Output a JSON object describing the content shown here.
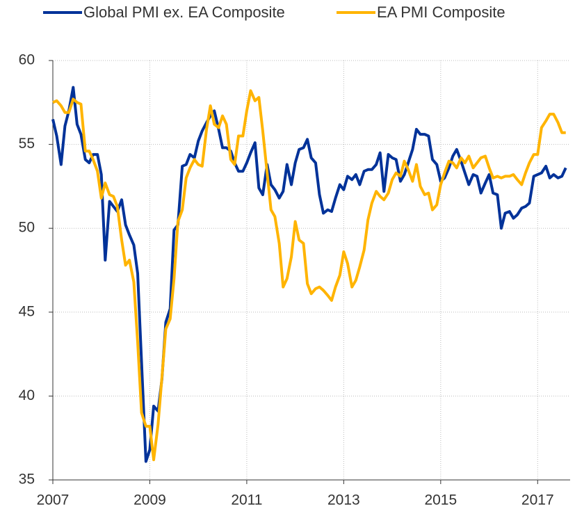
{
  "chart_data": {
    "type": "line",
    "x": [
      2007,
      2007.08,
      2007.17,
      2007.25,
      2007.33,
      2007.42,
      2007.5,
      2007.58,
      2007.67,
      2007.75,
      2007.83,
      2007.92,
      2008,
      2008.08,
      2008.17,
      2008.25,
      2008.33,
      2008.42,
      2008.5,
      2008.58,
      2008.67,
      2008.75,
      2008.83,
      2008.92,
      2009,
      2009.08,
      2009.17,
      2009.25,
      2009.33,
      2009.42,
      2009.5,
      2009.58,
      2009.67,
      2009.75,
      2009.83,
      2009.92,
      2010,
      2010.08,
      2010.17,
      2010.25,
      2010.33,
      2010.42,
      2010.5,
      2010.58,
      2010.67,
      2010.75,
      2010.83,
      2010.92,
      2011,
      2011.08,
      2011.17,
      2011.25,
      2011.33,
      2011.42,
      2011.5,
      2011.58,
      2011.67,
      2011.75,
      2011.83,
      2011.92,
      2012,
      2012.08,
      2012.17,
      2012.25,
      2012.33,
      2012.42,
      2012.5,
      2012.58,
      2012.67,
      2012.75,
      2012.83,
      2012.92,
      2013,
      2013.08,
      2013.17,
      2013.25,
      2013.33,
      2013.42,
      2013.5,
      2013.58,
      2013.67,
      2013.75,
      2013.83,
      2013.92,
      2014,
      2014.08,
      2014.17,
      2014.25,
      2014.33,
      2014.42,
      2014.5,
      2014.58,
      2014.67,
      2014.75,
      2014.83,
      2014.92,
      2015,
      2015.08,
      2015.17,
      2015.25,
      2015.33,
      2015.42,
      2015.5,
      2015.58,
      2015.67,
      2015.75,
      2015.83,
      2015.92,
      2016,
      2016.08,
      2016.17,
      2016.25,
      2016.33,
      2016.42,
      2016.5,
      2016.58,
      2016.67,
      2016.75,
      2016.83,
      2016.92,
      2017,
      2017.08,
      2017.17,
      2017.25,
      2017.33,
      2017.42,
      2017.5,
      2017.58
    ],
    "series": [
      {
        "name": "Global PMI ex. EA Composite",
        "color": "#003299",
        "values": [
          56.5,
          55.5,
          53.8,
          56.1,
          57,
          58.4,
          56.2,
          55.6,
          54.1,
          53.9,
          54.4,
          54.4,
          53.2,
          48.1,
          51.6,
          51.3,
          51,
          51.7,
          50.2,
          49.6,
          49,
          47.3,
          42,
          36.1,
          36.8,
          39.4,
          39.1,
          41,
          44.4,
          45.2,
          49.9,
          50.2,
          53.7,
          53.8,
          54.4,
          54.2,
          55.2,
          55.8,
          56.3,
          56.7,
          57,
          55.9,
          54.8,
          54.8,
          54.6,
          53.9,
          53.4,
          53.4,
          53.9,
          54.5,
          55.1,
          52.4,
          52,
          53.8,
          52.6,
          52.3,
          51.8,
          52.2,
          53.8,
          52.6,
          53.9,
          54.7,
          54.8,
          55.3,
          54.2,
          53.9,
          52,
          50.9,
          51.1,
          51,
          51.8,
          52.6,
          52.3,
          53.1,
          52.9,
          53.2,
          52.6,
          53.4,
          53.5,
          53.5,
          53.8,
          54.5,
          52.2,
          54.4,
          54.2,
          54.1,
          52.8,
          53.2,
          53.9,
          54.7,
          55.9,
          55.6,
          55.6,
          55.5,
          54.1,
          53.8,
          52.8,
          53,
          53.6,
          54.3,
          54.7,
          54,
          53.3,
          52.6,
          53.2,
          53.1,
          52.1,
          52.7,
          53.2,
          52.1,
          52,
          50,
          50.9,
          51,
          50.6,
          50.8,
          51.2,
          51.3,
          51.5,
          53.1,
          53.2,
          53.3,
          53.7,
          53,
          53.2,
          53,
          53.1,
          53.6
        ]
      },
      {
        "name": "EA PMI Composite",
        "color": "#ffb400",
        "values": [
          57.5,
          57.6,
          57.3,
          56.9,
          56.9,
          57.7,
          57.5,
          57.4,
          54.6,
          54.6,
          54.1,
          53.4,
          51.8,
          52.7,
          52,
          51.9,
          51.3,
          49.3,
          47.8,
          48.1,
          46.8,
          43.2,
          39,
          38.2,
          38.2,
          36.2,
          38.3,
          41.1,
          44,
          44.6,
          47,
          50.4,
          51.1,
          53,
          53.6,
          54.1,
          53.8,
          53.7,
          55.9,
          57.3,
          56.2,
          56,
          56.7,
          56.2,
          54.1,
          53.8,
          55.5,
          55.5,
          57,
          58.2,
          57.6,
          57.8,
          55.8,
          53.3,
          51.1,
          50.7,
          49.1,
          46.5,
          47,
          48.3,
          50.4,
          49.3,
          49.1,
          46.7,
          46.1,
          46.4,
          46.5,
          46.3,
          46,
          45.7,
          46.5,
          47.2,
          48.6,
          47.9,
          46.5,
          46.9,
          47.7,
          48.7,
          50.5,
          51.5,
          52.2,
          51.9,
          51.7,
          52.1,
          52.9,
          53.3,
          53.1,
          54,
          53.5,
          52.8,
          53.8,
          52.5,
          52,
          52.1,
          51.1,
          51.4,
          52.6,
          53.3,
          54,
          53.9,
          53.6,
          54.2,
          53.9,
          54.3,
          53.6,
          53.9,
          54.2,
          54.3,
          53.6,
          53,
          53.1,
          53,
          53.1,
          53.1,
          53.2,
          52.9,
          52.6,
          53.3,
          53.9,
          54.4,
          54.4,
          56,
          56.4,
          56.8,
          56.8,
          56.3,
          55.7,
          55.7
        ]
      }
    ],
    "xlim": [
      2007,
      2017.67
    ],
    "xticks": [
      2007,
      2009,
      2011,
      2013,
      2015,
      2017
    ],
    "ylim": [
      35,
      60
    ],
    "yticks": [
      35,
      40,
      45,
      50,
      55,
      60
    ],
    "grid": true
  }
}
